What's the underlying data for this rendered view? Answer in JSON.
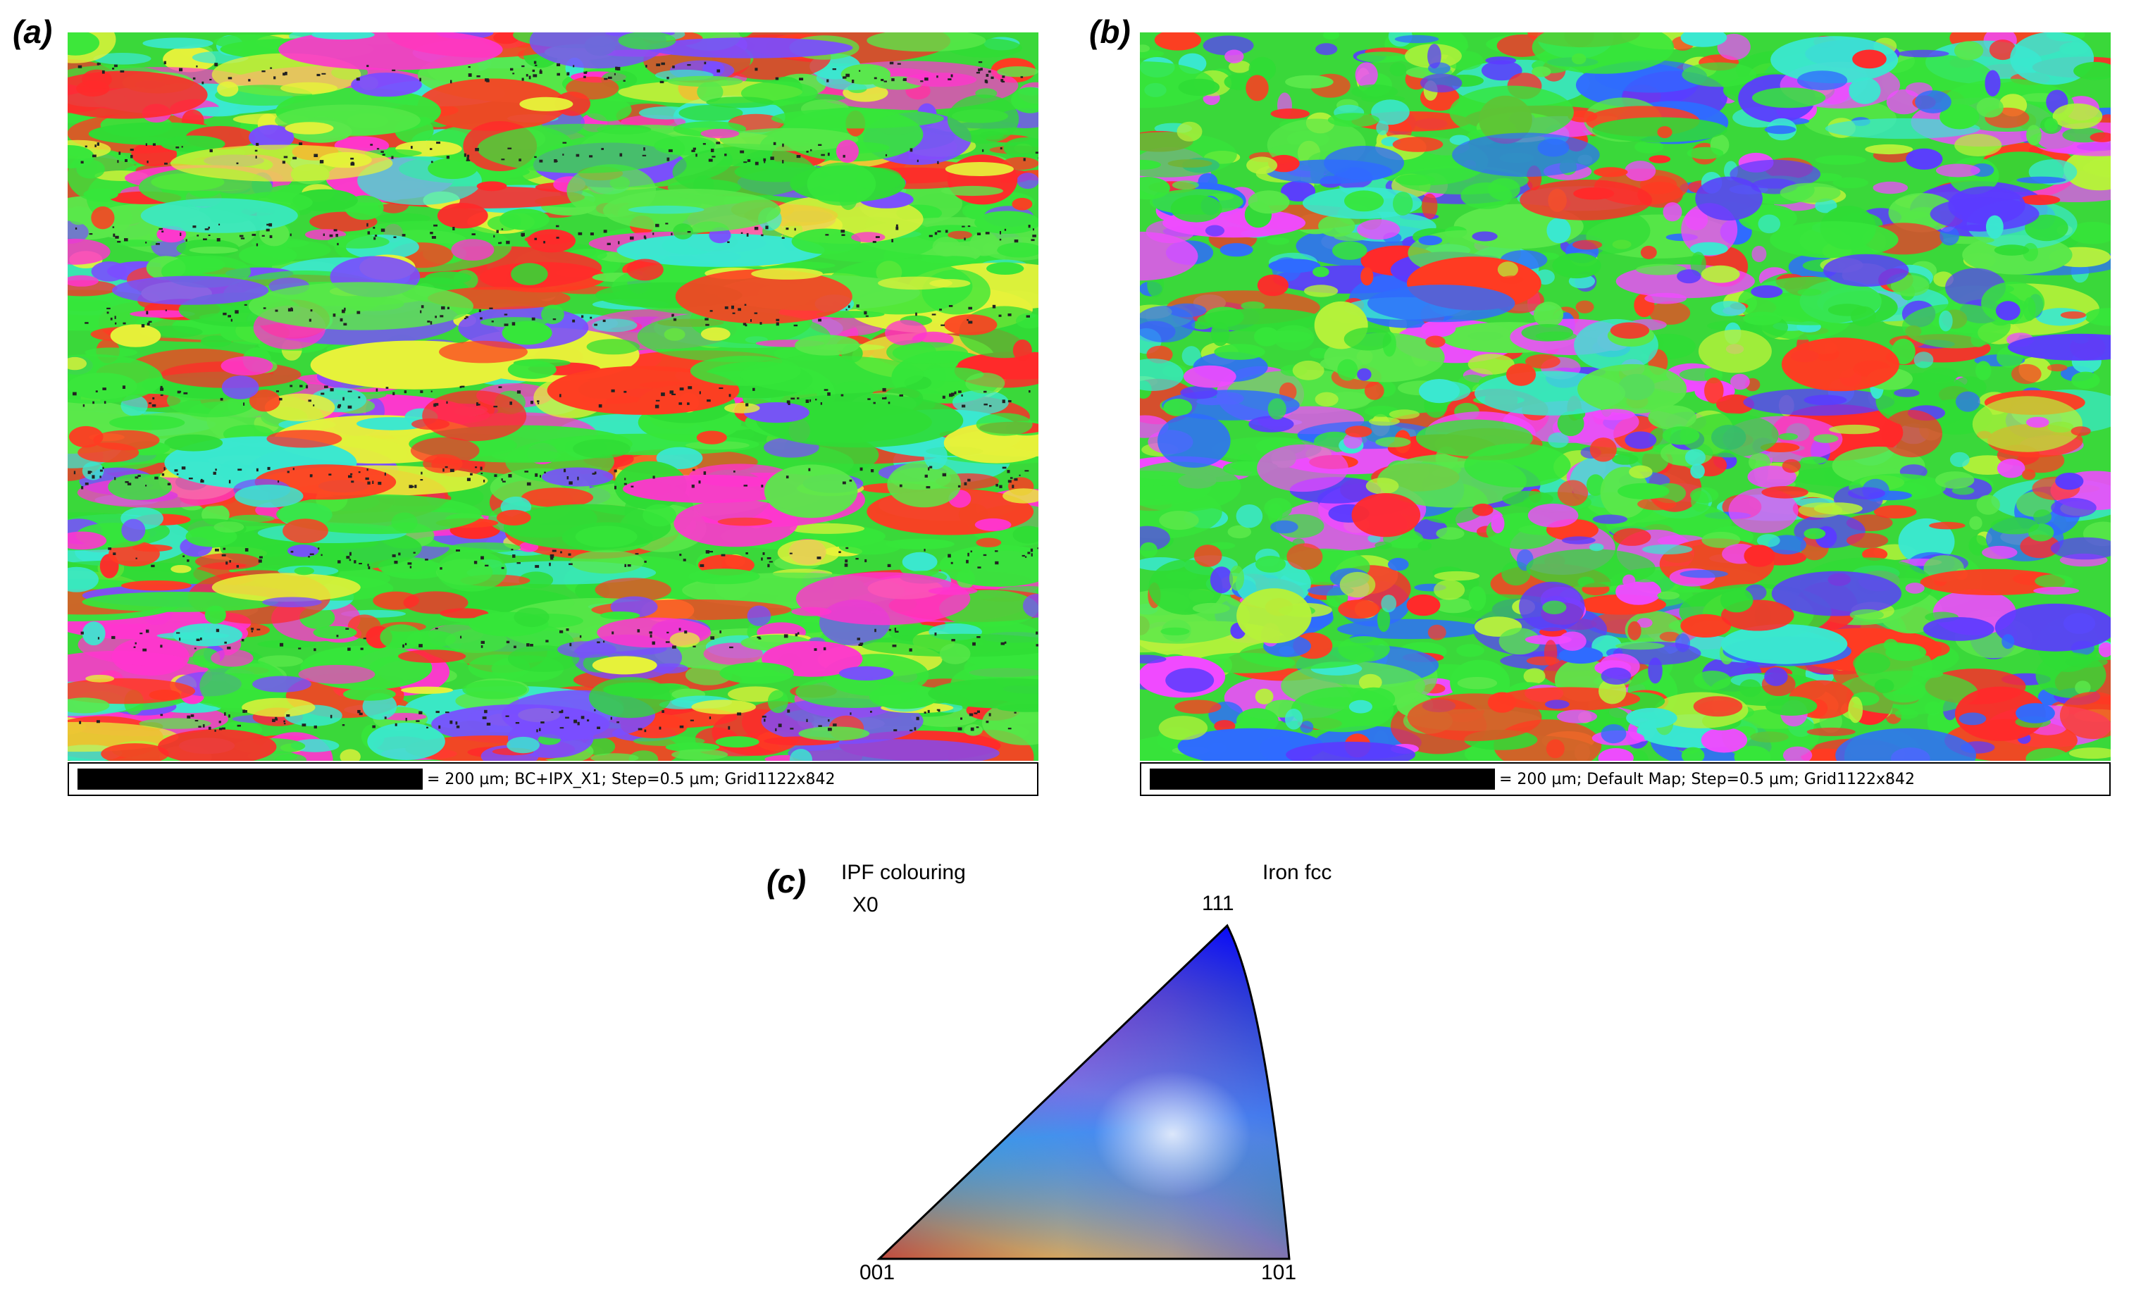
{
  "panels": {
    "a": {
      "label": "(a)",
      "scale_value": "200 µm",
      "scale_text": "= 200 µm; BC+IPX_X1; Step=0.5 µm; Grid1122x842",
      "colors": [
        "#36e63a",
        "#36e63a",
        "#36e63a",
        "#2fdc35",
        "#5ae84a",
        "#ff2a2a",
        "#ff3b22",
        "#e6f23a",
        "#ff35cf",
        "#7a4dff",
        "#3ae8d0"
      ]
    },
    "b": {
      "label": "(b)",
      "scale_value": "200 µm",
      "scale_text": "= 200 µm; Default Map; Step=0.5 µm; Grid1122x842",
      "colors": [
        "#36e63a",
        "#36e63a",
        "#2fdc35",
        "#5ae84a",
        "#ff2a2a",
        "#ff3b22",
        "#f04aff",
        "#5b3bff",
        "#2f6bff",
        "#3ae8d0",
        "#b6f23a"
      ]
    },
    "c": {
      "label": "(c)",
      "title": "IPF colouring",
      "subtitle": "X0",
      "phase": "Iron fcc",
      "corner_labels": {
        "bottom_left": "001",
        "bottom_right": "101",
        "top": "111"
      },
      "corner_colors": {
        "001": "#ff0000",
        "101": "#00ff00",
        "111": "#0000ff"
      }
    }
  }
}
